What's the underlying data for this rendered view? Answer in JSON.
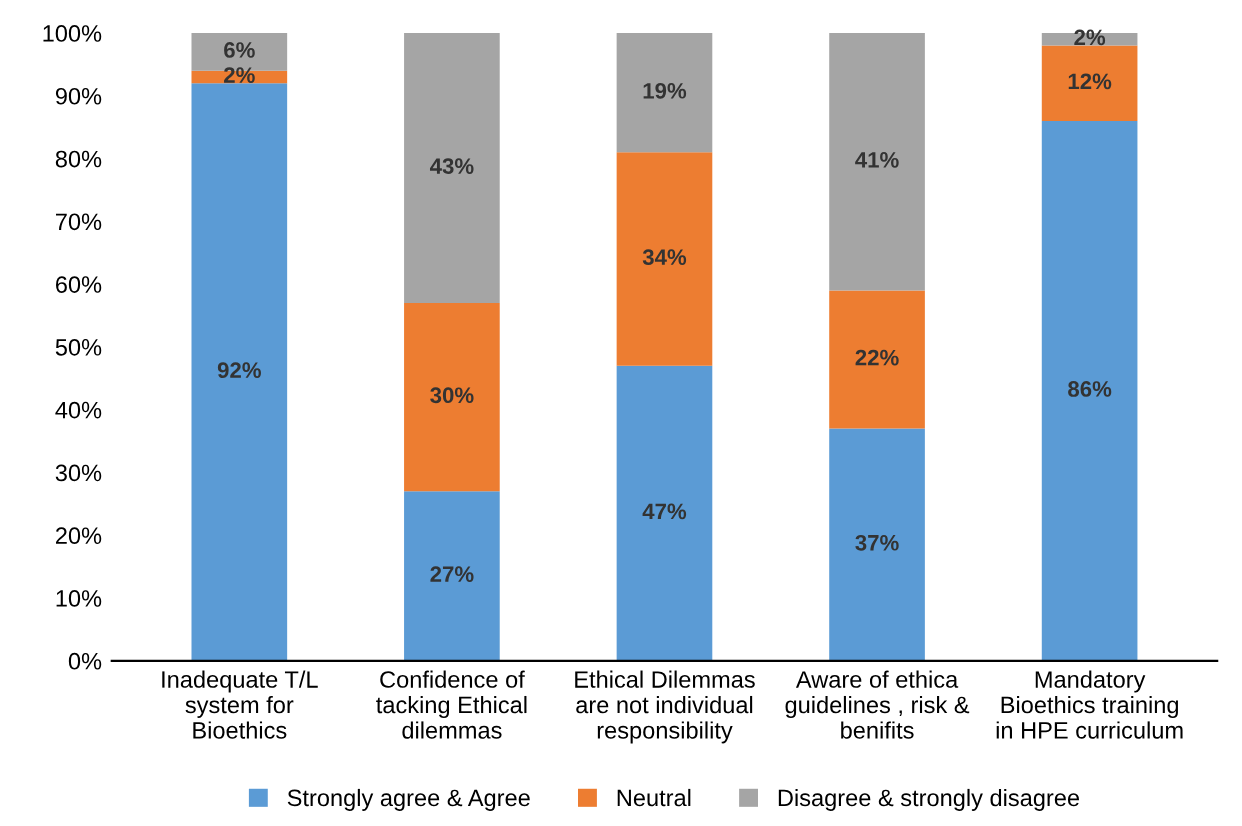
{
  "chart_data": {
    "type": "bar",
    "stacked": true,
    "categories": [
      "Inadequate T/L\nsystem for\nBioethics",
      "Confidence of\ntacking Ethical\ndilemmas",
      "Ethical Dilemmas\nare not individual\nresponsibility",
      "Aware of ethica\nguidelines , risk &\nbenifits",
      "Mandatory\nBioethics training\nin HPE curriculum"
    ],
    "series": [
      {
        "name": "Strongly agree & Agree",
        "color": "#5b9bd5",
        "values": [
          92,
          27,
          47,
          37,
          86
        ],
        "value_labels": [
          "92%",
          "27%",
          "47%",
          "37%",
          "86%"
        ]
      },
      {
        "name": "Neutral",
        "color": "#ed7d31",
        "values": [
          2,
          30,
          34,
          22,
          12
        ],
        "value_labels": [
          "2%",
          "30%",
          "34%",
          "22%",
          "12%"
        ]
      },
      {
        "name": "Disagree & strongly disagree",
        "color": "#a5a5a5",
        "values": [
          6,
          43,
          19,
          41,
          2
        ],
        "value_labels": [
          "6%",
          "43%",
          "19%",
          "41%",
          "2%"
        ]
      }
    ],
    "ylim": [
      0,
      100
    ],
    "yticks": [
      {
        "value": 0,
        "label": "0%"
      },
      {
        "value": 10,
        "label": "10%"
      },
      {
        "value": 20,
        "label": "20%"
      },
      {
        "value": 30,
        "label": "30%"
      },
      {
        "value": 40,
        "label": "40%"
      },
      {
        "value": 50,
        "label": "50%"
      },
      {
        "value": 60,
        "label": "60%"
      },
      {
        "value": 70,
        "label": "70%"
      },
      {
        "value": 80,
        "label": "80%"
      },
      {
        "value": 90,
        "label": "90%"
      },
      {
        "value": 100,
        "label": "100%"
      }
    ],
    "legend": "bottom",
    "grid": false
  }
}
